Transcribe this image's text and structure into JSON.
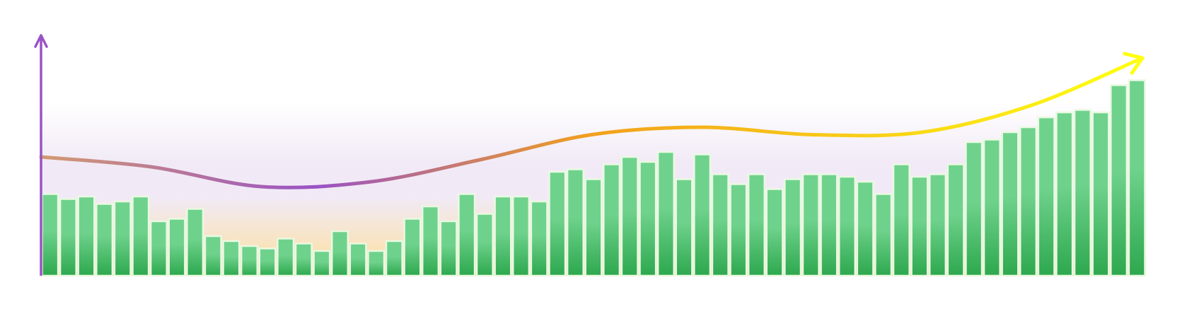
{
  "chart_data": {
    "type": "bar",
    "title": "",
    "xlabel": "",
    "ylabel": "",
    "ylim": [
      0,
      100
    ],
    "grid": false,
    "legend": "none",
    "series": [
      {
        "name": "",
        "type": "bar",
        "values": [
          33,
          31,
          32,
          29,
          30,
          32,
          22,
          23,
          27,
          16,
          14,
          12,
          11,
          15,
          13,
          10,
          18,
          13,
          10,
          14,
          23,
          28,
          22,
          33,
          25,
          32,
          32,
          30,
          42,
          43,
          39,
          45,
          48,
          46,
          50,
          39,
          49,
          41,
          37,
          41,
          35,
          39,
          41,
          41,
          40,
          38,
          33,
          45,
          40,
          41,
          45,
          54,
          55,
          58,
          60,
          64,
          66,
          67,
          66,
          77,
          79
        ]
      },
      {
        "name": "",
        "type": "line",
        "x": [
          0,
          6,
          12,
          18,
          24,
          30,
          36,
          42,
          48,
          54,
          60
        ],
        "values": [
          48,
          44,
          36,
          38,
          47,
          57,
          60,
          57,
          58,
          69,
          88
        ]
      }
    ],
    "colors": {
      "bar_top": "#6fd28c",
      "bar_bottom": "#2da84e",
      "bar_outline": "#e9f9e2",
      "axis": "#9a52c6",
      "line_start": "#d39a70",
      "line_mid_low": "#9a52c6",
      "line_mid": "#f2a01c",
      "line_end": "#ffff10",
      "bg_top": "#ffffff",
      "bg_mid": "#f1eaf6",
      "bg_bottom": "#fddf9a"
    }
  }
}
